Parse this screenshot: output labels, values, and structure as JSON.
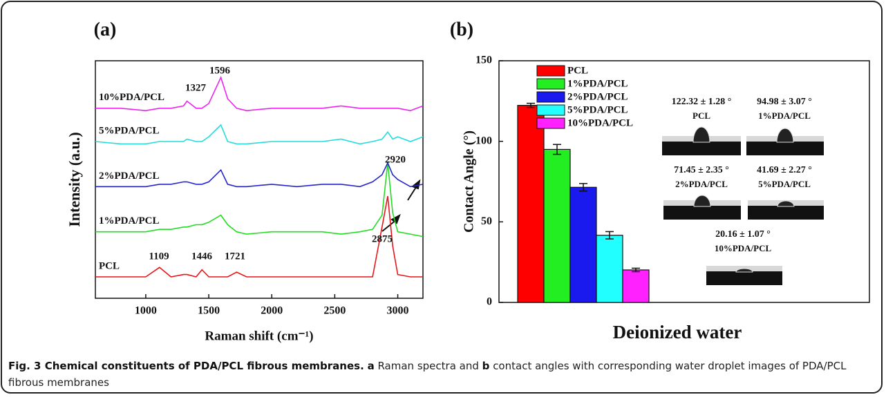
{
  "chart_data": [
    {
      "type": "line",
      "label": "(a)",
      "xlabel": "Raman shift (cm⁻¹)",
      "ylabel": "Intensity (a.u.)",
      "x": [
        600,
        800,
        1000,
        1109,
        1200,
        1300,
        1327,
        1400,
        1446,
        1500,
        1596,
        1650,
        1721,
        1800,
        2000,
        2200,
        2400,
        2550,
        2700,
        2800,
        2875,
        2920,
        2960,
        3000,
        3100,
        3200
      ],
      "xlim": [
        600,
        3200
      ],
      "xticks": [
        1000,
        1500,
        2000,
        2500,
        3000
      ],
      "ylim": [
        0,
        100
      ],
      "series": [
        {
          "name": "PCL",
          "color": "#e8141a",
          "values": [
            9,
            9,
            9,
            13,
            9,
            10,
            10,
            9,
            12,
            9,
            9,
            9,
            11,
            9,
            9,
            9,
            9,
            9,
            9,
            9,
            30,
            43,
            22,
            10,
            9,
            9
          ]
        },
        {
          "name": "1%PDA/PCL",
          "color": "#22dd22",
          "values": [
            28,
            28,
            28,
            29,
            29,
            30,
            30,
            31,
            31,
            32,
            35,
            31,
            28,
            27,
            28,
            28,
            28,
            27,
            28,
            29,
            35,
            57,
            36,
            28,
            27,
            26
          ]
        },
        {
          "name": "2%PDA/PCL",
          "color": "#2424cc",
          "values": [
            47,
            47,
            47,
            48,
            48,
            49,
            49,
            48,
            48,
            49,
            54,
            48,
            47,
            47,
            48,
            47,
            48,
            48,
            47,
            49,
            52,
            57,
            52,
            50,
            47,
            48
          ]
        },
        {
          "name": "5%PDA/PCL",
          "color": "#22dddd",
          "values": [
            66,
            65,
            65,
            66,
            66,
            66,
            67,
            66,
            66,
            68,
            73,
            66,
            65,
            65,
            66,
            66,
            66,
            67,
            65,
            66,
            67,
            70,
            67,
            68,
            66,
            68
          ]
        },
        {
          "name": "10%PDA/PCL",
          "color": "#ee22ee",
          "values": [
            80,
            80,
            79,
            80,
            80,
            81,
            83,
            80,
            80,
            82,
            93,
            84,
            80,
            79,
            80,
            80,
            80,
            81,
            80,
            80,
            80,
            80,
            80,
            80,
            79,
            81
          ]
        }
      ],
      "annotations": [
        {
          "text": "1596",
          "color": "#e8141a"
        },
        {
          "text": "1327",
          "color": "#e8141a"
        },
        {
          "text": "1109",
          "color": "#222222"
        },
        {
          "text": "1446",
          "color": "#222222"
        },
        {
          "text": "1721",
          "color": "#222222"
        },
        {
          "text": "2875",
          "color": "#222222"
        },
        {
          "text": "2920",
          "color": "#222222"
        }
      ]
    },
    {
      "type": "bar",
      "label": "(b)",
      "ylabel": "Contact Angle (°)",
      "categories": [
        "Deionized water"
      ],
      "ylim": [
        0,
        150
      ],
      "yticks": [
        0,
        50,
        100,
        150
      ],
      "series": [
        {
          "name": "PCL",
          "color": "#ff0000",
          "values": [
            122.32
          ],
          "errors": [
            1.28
          ],
          "value_labels": [
            "122.32 ± 1.28 °"
          ]
        },
        {
          "name": "1%PDA/PCL",
          "color": "#22ee22",
          "values": [
            94.98
          ],
          "errors": [
            3.07
          ],
          "value_labels": [
            "94.98 ± 3.07 °"
          ]
        },
        {
          "name": "2%PDA/PCL",
          "color": "#1a1aee",
          "values": [
            71.45
          ],
          "errors": [
            2.35
          ],
          "value_labels": [
            "71.45 ± 2.35 °"
          ]
        },
        {
          "name": "5%PDA/PCL",
          "color": "#22ffff",
          "values": [
            41.69
          ],
          "errors": [
            2.27
          ],
          "value_labels": [
            "41.69 ± 2.27 °"
          ]
        },
        {
          "name": "10%PDA/PCL",
          "color": "#ff22ff",
          "values": [
            20.16
          ],
          "errors": [
            1.07
          ],
          "value_labels": [
            "20.16 ± 1.07 °"
          ]
        }
      ]
    }
  ],
  "caption": {
    "title": "Fig. 3 Chemical constituents of PDA/PCL fibrous membranes.",
    "parts": [
      {
        "text": "a",
        "bold": true
      },
      {
        "text": "Raman spectra and",
        "bold": false
      },
      {
        "text": "b",
        "bold": true
      },
      {
        "text": "contact angles with corresponding water droplet images of PDA/PCL fibrous membranes",
        "bold": false
      }
    ]
  }
}
